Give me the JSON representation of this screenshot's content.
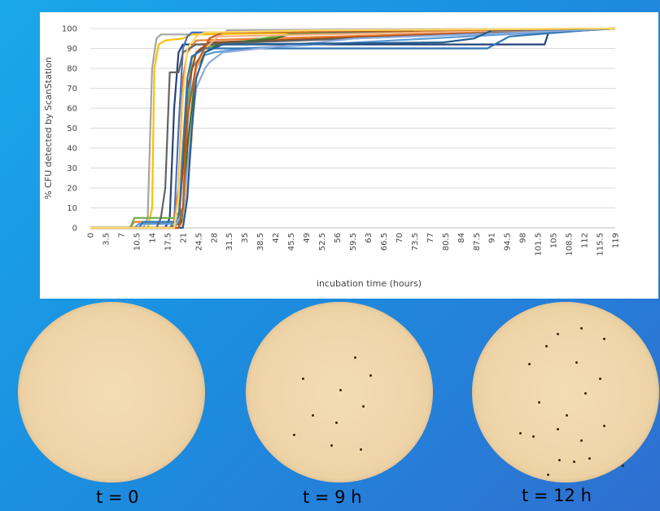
{
  "chart_data": {
    "type": "line",
    "title": "",
    "xlabel": "incubation time (hours)",
    "ylabel": "% CFU detected by ScanStation",
    "ylim": [
      0,
      100
    ],
    "yticks": [
      "0",
      "10",
      "20",
      "30",
      "40",
      "50",
      "60",
      "70",
      "80",
      "90",
      "100"
    ],
    "x": [
      "0",
      "3.5",
      "7",
      "10.5",
      "14",
      "17.5",
      "21",
      "24.5",
      "28",
      "31.5",
      "35",
      "38.5",
      "42",
      "45.5",
      "49",
      "52.5",
      "56",
      "59.5",
      "63",
      "66.5",
      "70",
      "73.5",
      "77",
      "80.5",
      "84",
      "87.5",
      "91",
      "94.5",
      "98",
      "101.5",
      "105",
      "108.5",
      "112",
      "115.5",
      "119"
    ],
    "grid": true,
    "legend": "none",
    "series": [
      {
        "color": "#a5a5a5",
        "points": [
          [
            0,
            0
          ],
          [
            12,
            0
          ],
          [
            13,
            5
          ],
          [
            14,
            80
          ],
          [
            15,
            95
          ],
          [
            16,
            97
          ],
          [
            30,
            97
          ],
          [
            31,
            99
          ],
          [
            119,
            100
          ]
        ]
      },
      {
        "color": "#ffc000",
        "points": [
          [
            0,
            0
          ],
          [
            13,
            0
          ],
          [
            14,
            10
          ],
          [
            14.5,
            80
          ],
          [
            15.5,
            92
          ],
          [
            17,
            94
          ],
          [
            21,
            95
          ],
          [
            23,
            97
          ],
          [
            119,
            100
          ]
        ]
      },
      {
        "color": "#264478",
        "points": [
          [
            0,
            0
          ],
          [
            17,
            0
          ],
          [
            18,
            5
          ],
          [
            19,
            60
          ],
          [
            20,
            88
          ],
          [
            21,
            92
          ],
          [
            80,
            92
          ],
          [
            103,
            92
          ],
          [
            104,
            99
          ],
          [
            119,
            100
          ]
        ]
      },
      {
        "color": "#4472c4",
        "points": [
          [
            0,
            0
          ],
          [
            18,
            0
          ],
          [
            19,
            3
          ],
          [
            20,
            50
          ],
          [
            21,
            90
          ],
          [
            22,
            96
          ],
          [
            23,
            98
          ],
          [
            112,
            99
          ],
          [
            119,
            100
          ]
        ]
      },
      {
        "color": "#ed7d31",
        "points": [
          [
            0,
            0
          ],
          [
            9,
            0
          ],
          [
            10,
            3
          ],
          [
            19,
            3
          ],
          [
            20,
            20
          ],
          [
            21,
            75
          ],
          [
            22,
            88
          ],
          [
            24,
            94
          ],
          [
            119,
            100
          ]
        ]
      },
      {
        "color": "#70ad47",
        "points": [
          [
            0,
            0
          ],
          [
            9,
            0
          ],
          [
            10,
            5
          ],
          [
            19,
            5
          ],
          [
            21,
            10
          ],
          [
            22,
            60
          ],
          [
            23,
            85
          ],
          [
            25,
            90
          ],
          [
            30,
            92
          ],
          [
            45,
            97
          ],
          [
            119,
            100
          ]
        ]
      },
      {
        "color": "#5b9bd5",
        "points": [
          [
            0,
            0
          ],
          [
            10,
            0
          ],
          [
            11,
            2
          ],
          [
            19,
            2
          ],
          [
            21,
            10
          ],
          [
            22,
            50
          ],
          [
            23,
            80
          ],
          [
            25,
            86
          ],
          [
            28,
            88
          ],
          [
            35,
            90
          ],
          [
            119,
            100
          ]
        ]
      },
      {
        "color": "#9e480e",
        "points": [
          [
            0,
            0
          ],
          [
            18,
            0
          ],
          [
            20,
            2
          ],
          [
            21,
            30
          ],
          [
            22,
            70
          ],
          [
            24,
            88
          ],
          [
            27,
            93
          ],
          [
            119,
            100
          ]
        ]
      },
      {
        "color": "#43682b",
        "points": [
          [
            0,
            0
          ],
          [
            20,
            0
          ],
          [
            21,
            5
          ],
          [
            22,
            40
          ],
          [
            24,
            80
          ],
          [
            26,
            88
          ],
          [
            29,
            92
          ],
          [
            33,
            93
          ],
          [
            42,
            95
          ],
          [
            45,
            97
          ],
          [
            119,
            100
          ]
        ]
      },
      {
        "color": "#636363",
        "points": [
          [
            0,
            0
          ],
          [
            15,
            0
          ],
          [
            16,
            5
          ],
          [
            17,
            20
          ],
          [
            18,
            78
          ],
          [
            20,
            78
          ],
          [
            21,
            88
          ],
          [
            24,
            92
          ],
          [
            119,
            100
          ]
        ]
      },
      {
        "color": "#f4b183",
        "points": [
          [
            0,
            0
          ],
          [
            20,
            0
          ],
          [
            21,
            2
          ],
          [
            22,
            20
          ],
          [
            23,
            45
          ],
          [
            24,
            80
          ],
          [
            26,
            90
          ],
          [
            29,
            96
          ],
          [
            119,
            100
          ]
        ]
      },
      {
        "color": "#2e75b6",
        "points": [
          [
            0,
            0
          ],
          [
            11,
            0
          ],
          [
            12,
            3
          ],
          [
            20,
            3
          ],
          [
            21,
            40
          ],
          [
            22,
            75
          ],
          [
            23,
            86
          ],
          [
            26,
            90
          ],
          [
            90,
            90
          ],
          [
            95,
            96
          ],
          [
            112,
            99
          ],
          [
            119,
            100
          ]
        ]
      },
      {
        "color": "#8faadc",
        "points": [
          [
            0,
            0
          ],
          [
            19,
            0
          ],
          [
            21,
            8
          ],
          [
            22,
            30
          ],
          [
            24,
            70
          ],
          [
            26,
            80
          ],
          [
            27,
            83
          ],
          [
            30,
            88
          ],
          [
            60,
            95
          ],
          [
            98,
            98
          ],
          [
            119,
            100
          ]
        ]
      },
      {
        "color": "#255e91",
        "points": [
          [
            0,
            0
          ],
          [
            21,
            0
          ],
          [
            22,
            15
          ],
          [
            23,
            50
          ],
          [
            24,
            75
          ],
          [
            26,
            88
          ],
          [
            30,
            92
          ],
          [
            80,
            93
          ],
          [
            87,
            95
          ],
          [
            91,
            99
          ],
          [
            119,
            100
          ]
        ]
      },
      {
        "color": "#c55a11",
        "points": [
          [
            0,
            0
          ],
          [
            20,
            0
          ],
          [
            21,
            10
          ],
          [
            22,
            55
          ],
          [
            24,
            82
          ],
          [
            27,
            95
          ],
          [
            30,
            98
          ],
          [
            119,
            100
          ]
        ]
      },
      {
        "color": "#ffd966",
        "points": [
          [
            0,
            0
          ],
          [
            19,
            0
          ],
          [
            20,
            15
          ],
          [
            21,
            65
          ],
          [
            22,
            90
          ],
          [
            24,
            96
          ],
          [
            26,
            98
          ],
          [
            50,
            99
          ],
          [
            119,
            100
          ]
        ]
      }
    ]
  },
  "plates": [
    {
      "label": "t = 0",
      "colonies": []
    },
    {
      "label": "t = 9 h",
      "colonies": [
        [
          0.3,
          0.42
        ],
        [
          0.5,
          0.48
        ],
        [
          0.62,
          0.57
        ],
        [
          0.35,
          0.62
        ],
        [
          0.48,
          0.66
        ],
        [
          0.25,
          0.73
        ],
        [
          0.45,
          0.79
        ],
        [
          0.61,
          0.81
        ],
        [
          0.66,
          0.4
        ],
        [
          0.58,
          0.3
        ]
      ]
    },
    {
      "label": "t = 12 h",
      "colonies": [
        [
          0.45,
          0.17
        ],
        [
          0.58,
          0.14
        ],
        [
          0.7,
          0.2
        ],
        [
          0.39,
          0.24
        ],
        [
          0.55,
          0.33
        ],
        [
          0.3,
          0.34
        ],
        [
          0.68,
          0.42
        ],
        [
          0.6,
          0.5
        ],
        [
          0.35,
          0.55
        ],
        [
          0.5,
          0.62
        ],
        [
          0.25,
          0.72
        ],
        [
          0.32,
          0.74
        ],
        [
          0.45,
          0.7
        ],
        [
          0.58,
          0.76
        ],
        [
          0.7,
          0.68
        ],
        [
          0.46,
          0.87
        ],
        [
          0.54,
          0.88
        ],
        [
          0.62,
          0.86
        ],
        [
          0.4,
          0.95
        ],
        [
          0.8,
          0.9
        ]
      ]
    }
  ]
}
